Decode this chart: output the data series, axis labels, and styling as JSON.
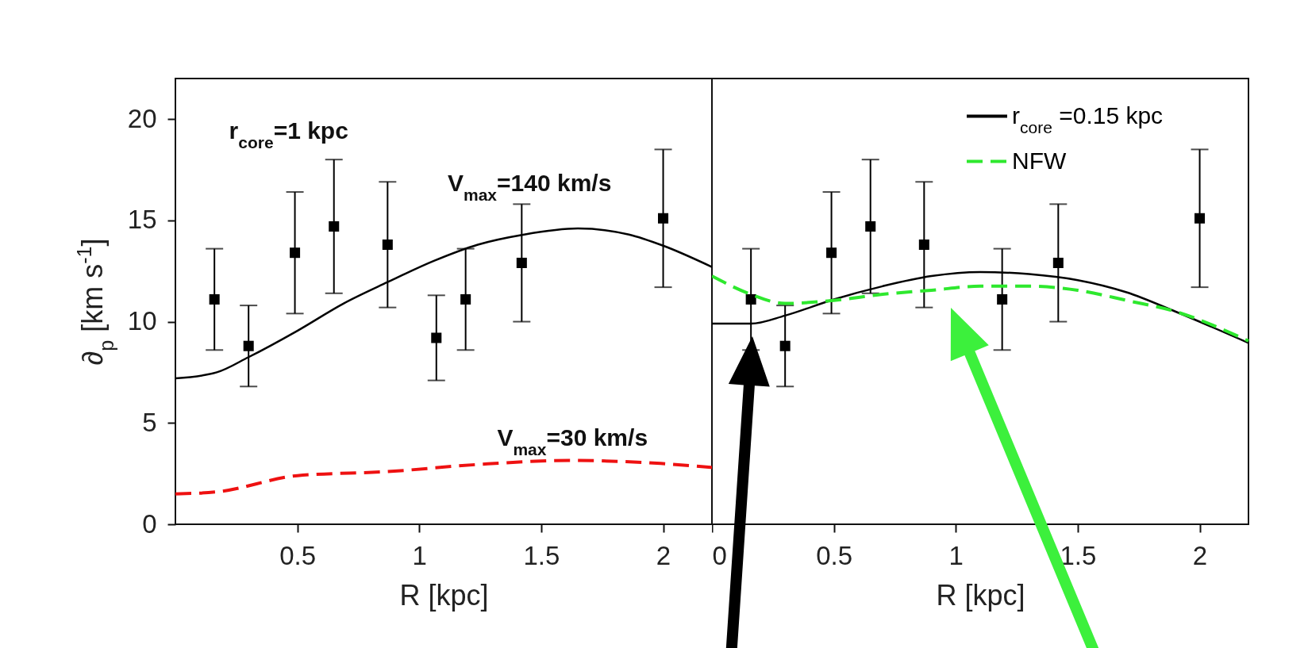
{
  "chart_data": [
    {
      "type": "line",
      "xlabel": "R [kpc]",
      "ylabel": "∂$_{p}$ [km s$^{-1}$]",
      "xlim": [
        0,
        2.2
      ],
      "ylim": [
        0,
        22
      ],
      "xticks": [
        0.5,
        1,
        1.5,
        2
      ],
      "yticks": [
        0,
        5,
        10,
        15,
        20
      ],
      "annotations": [
        "r$_{core}$=1 kpc",
        "V$_{max}$=140 km/s",
        "V$_{max}$=30 km/s"
      ],
      "series": [
        {
          "type": "scatter",
          "marker": "square",
          "color": "#000000",
          "x": [
            0.16,
            0.3,
            0.49,
            0.65,
            0.87,
            1.07,
            1.19,
            1.42,
            2.0
          ],
          "values": [
            11.1,
            8.8,
            13.4,
            14.7,
            13.8,
            9.2,
            11.1,
            12.9,
            15.1
          ],
          "errors": [
            2.5,
            2.0,
            3.0,
            3.3,
            3.1,
            2.1,
            2.5,
            2.9,
            3.4
          ]
        },
        {
          "color": "#000000",
          "line_style": "solid",
          "x": [
            0,
            0.17,
            0.3,
            0.5,
            0.69,
            0.87,
            1.06,
            1.24,
            1.43,
            1.65,
            1.86,
            2.0,
            2.2
          ],
          "values": [
            7.2,
            7.5,
            8.25,
            9.55,
            10.9,
            11.95,
            13.0,
            13.8,
            14.3,
            14.6,
            14.3,
            13.75,
            12.7
          ]
        },
        {
          "color": "#ee1111",
          "line_style": "dashed",
          "x": [
            0,
            0.17,
            0.5,
            0.87,
            1.24,
            1.62,
            1.99,
            2.2
          ],
          "values": [
            1.5,
            1.6,
            2.4,
            2.6,
            2.95,
            3.15,
            3.0,
            2.8
          ]
        }
      ]
    },
    {
      "type": "line",
      "xlabel": "R [kpc]",
      "xlim": [
        0,
        2.2
      ],
      "ylim": [
        0,
        22
      ],
      "xticks": [
        0,
        0.5,
        1,
        1.5,
        2
      ],
      "yticks": [
        0,
        5,
        10,
        15,
        20
      ],
      "tick_labels": "x",
      "legend": "top right",
      "series": [
        {
          "type": "scatter",
          "marker": "square",
          "color": "#000000",
          "x": [
            0.16,
            0.3,
            0.49,
            0.65,
            0.87,
            1.19,
            1.42,
            2.0
          ],
          "values": [
            11.1,
            8.8,
            13.4,
            14.7,
            13.8,
            11.1,
            12.9,
            15.1
          ],
          "errors": [
            2.5,
            2.0,
            3.0,
            3.3,
            3.1,
            2.5,
            2.9,
            3.4
          ]
        },
        {
          "name": "r$_{core}$ =0.15 kpc",
          "color": "#000000",
          "line_style": "solid",
          "x": [
            0,
            0.16,
            0.3,
            0.5,
            0.7,
            0.9,
            1.1,
            1.3,
            1.5,
            1.7,
            1.9,
            2.2
          ],
          "values": [
            9.9,
            9.9,
            10.3,
            11.1,
            11.75,
            12.25,
            12.45,
            12.35,
            12.05,
            11.45,
            10.5,
            8.95
          ]
        },
        {
          "name": "NFW",
          "color": "#2ee82e",
          "line_style": "dashed",
          "x": [
            0,
            0.16,
            0.3,
            0.5,
            0.7,
            0.9,
            1.1,
            1.3,
            1.5,
            1.7,
            1.9,
            2.2
          ],
          "values": [
            12.25,
            11.35,
            10.9,
            11.05,
            11.35,
            11.55,
            11.75,
            11.75,
            11.55,
            11.05,
            10.5,
            9.05
          ]
        }
      ]
    }
  ]
}
